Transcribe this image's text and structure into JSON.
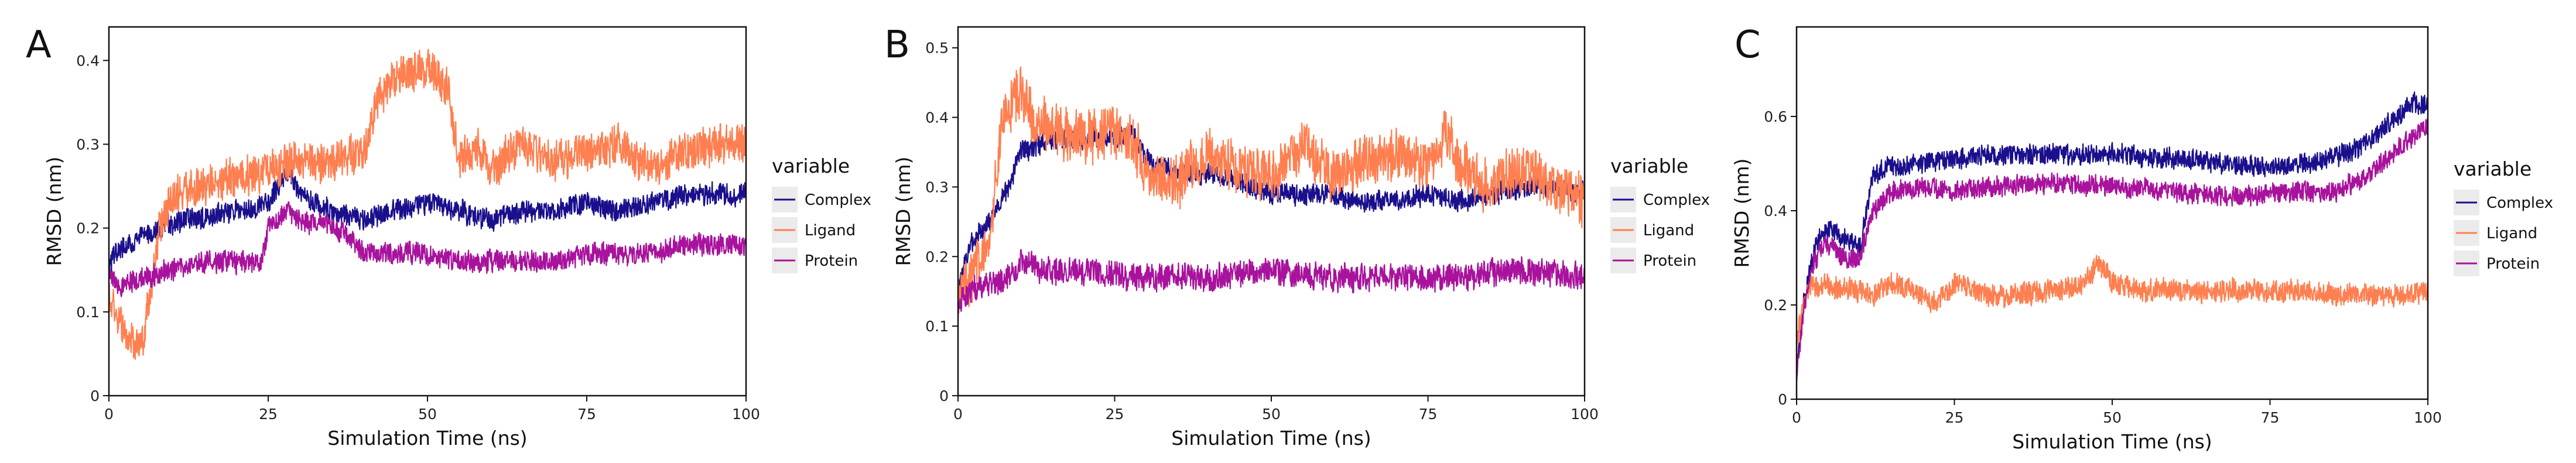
{
  "figure": {
    "description_free": true
  },
  "chart_data": [
    {
      "type": "line",
      "panel_label": "A",
      "xlabel": "Simulation Time (ns)",
      "ylabel": "RMSD (nm)",
      "xlim": [
        0,
        100
      ],
      "ylim": [
        0,
        0.44
      ],
      "xticks": [
        0,
        25,
        50,
        75,
        100
      ],
      "xtick_labels": [
        "0",
        "25",
        "50",
        "75",
        "100"
      ],
      "yticks": [
        0,
        0.1,
        0.2,
        0.3,
        0.4
      ],
      "ytick_labels": [
        "0",
        "0.1",
        "0.2",
        "0.3",
        "0.4"
      ],
      "legend": {
        "title": "variable",
        "position": "right",
        "entries": [
          "Complex",
          "Ligand",
          "Protein"
        ]
      },
      "series": [
        {
          "name": "Complex",
          "color": "#1a0f8c",
          "noise": 0.012,
          "x": [
            0,
            1,
            3,
            5,
            8,
            12,
            20,
            25,
            28,
            30,
            35,
            40,
            45,
            50,
            55,
            60,
            65,
            70,
            75,
            80,
            85,
            90,
            95,
            100
          ],
          "values": [
            0.15,
            0.17,
            0.18,
            0.19,
            0.2,
            0.21,
            0.22,
            0.23,
            0.27,
            0.24,
            0.22,
            0.21,
            0.22,
            0.23,
            0.22,
            0.21,
            0.22,
            0.22,
            0.23,
            0.22,
            0.23,
            0.24,
            0.24,
            0.24
          ]
        },
        {
          "name": "Ligand",
          "color": "#ff7f50",
          "noise": 0.022,
          "x": [
            0,
            2,
            4,
            5,
            8,
            10,
            15,
            20,
            25,
            30,
            35,
            40,
            42,
            45,
            48,
            50,
            53,
            55,
            58,
            60,
            65,
            70,
            75,
            80,
            85,
            90,
            95,
            100
          ],
          "values": [
            0.12,
            0.08,
            0.06,
            0.05,
            0.2,
            0.24,
            0.25,
            0.26,
            0.27,
            0.28,
            0.28,
            0.29,
            0.35,
            0.38,
            0.39,
            0.39,
            0.37,
            0.28,
            0.3,
            0.27,
            0.3,
            0.28,
            0.29,
            0.3,
            0.27,
            0.29,
            0.3,
            0.3
          ]
        },
        {
          "name": "Protein",
          "color": "#a8129c",
          "noise": 0.012,
          "x": [
            0,
            2,
            5,
            10,
            15,
            20,
            24,
            25,
            28,
            30,
            35,
            38,
            40,
            45,
            50,
            55,
            60,
            65,
            70,
            75,
            80,
            85,
            90,
            95,
            100
          ],
          "values": [
            0.14,
            0.13,
            0.14,
            0.15,
            0.16,
            0.16,
            0.16,
            0.2,
            0.22,
            0.21,
            0.2,
            0.19,
            0.17,
            0.17,
            0.17,
            0.16,
            0.16,
            0.16,
            0.16,
            0.17,
            0.17,
            0.17,
            0.18,
            0.18,
            0.18
          ]
        }
      ]
    },
    {
      "type": "line",
      "panel_label": "B",
      "xlabel": "Simulation Time (ns)",
      "ylabel": "RMSD (nm)",
      "xlim": [
        0,
        100
      ],
      "ylim": [
        0,
        0.53
      ],
      "xticks": [
        0,
        25,
        50,
        75,
        100
      ],
      "xtick_labels": [
        "0",
        "25",
        "50",
        "75",
        "100"
      ],
      "yticks": [
        0,
        0.1,
        0.2,
        0.3,
        0.4,
        0.5
      ],
      "ytick_labels": [
        "0",
        "0.1",
        "0.2",
        "0.3",
        "0.4",
        "0.5"
      ],
      "legend": {
        "title": "variable",
        "position": "right",
        "entries": [
          "Complex",
          "Ligand",
          "Protein"
        ]
      },
      "series": [
        {
          "name": "Complex",
          "color": "#1a0f8c",
          "noise": 0.014,
          "x": [
            0,
            2,
            5,
            8,
            10,
            15,
            20,
            25,
            28,
            30,
            35,
            40,
            45,
            50,
            55,
            60,
            65,
            70,
            75,
            80,
            85,
            90,
            95,
            100
          ],
          "values": [
            0.15,
            0.22,
            0.25,
            0.3,
            0.35,
            0.37,
            0.37,
            0.37,
            0.38,
            0.34,
            0.32,
            0.32,
            0.31,
            0.29,
            0.29,
            0.29,
            0.28,
            0.28,
            0.29,
            0.28,
            0.29,
            0.3,
            0.3,
            0.29
          ]
        },
        {
          "name": "Ligand",
          "color": "#ff7f50",
          "noise": 0.035,
          "x": [
            0,
            2,
            5,
            7,
            10,
            12,
            15,
            20,
            25,
            28,
            30,
            35,
            40,
            45,
            50,
            55,
            60,
            65,
            70,
            75,
            78,
            80,
            85,
            90,
            95,
            100
          ],
          "values": [
            0.15,
            0.17,
            0.22,
            0.4,
            0.44,
            0.4,
            0.38,
            0.37,
            0.38,
            0.37,
            0.32,
            0.31,
            0.35,
            0.33,
            0.31,
            0.36,
            0.32,
            0.34,
            0.35,
            0.33,
            0.38,
            0.33,
            0.3,
            0.33,
            0.3,
            0.28
          ]
        },
        {
          "name": "Protein",
          "color": "#a8129c",
          "noise": 0.018,
          "x": [
            0,
            2,
            5,
            8,
            10,
            15,
            20,
            30,
            40,
            50,
            60,
            70,
            80,
            90,
            100
          ],
          "values": [
            0.13,
            0.15,
            0.16,
            0.17,
            0.19,
            0.18,
            0.18,
            0.17,
            0.17,
            0.18,
            0.17,
            0.17,
            0.17,
            0.18,
            0.17
          ]
        }
      ]
    },
    {
      "type": "line",
      "panel_label": "C",
      "xlabel": "Simulation Time (ns)",
      "ylabel": "RMSD (nm)",
      "xlim": [
        0,
        100
      ],
      "ylim": [
        0,
        0.79
      ],
      "xticks": [
        0,
        25,
        50,
        75,
        100
      ],
      "xtick_labels": [
        "0",
        "25",
        "50",
        "75",
        "100"
      ],
      "yticks": [
        0,
        0.2,
        0.4,
        0.6
      ],
      "ytick_labels": [
        "0",
        "0.2",
        "0.4",
        "0.6"
      ],
      "legend": {
        "title": "variable",
        "position": "right",
        "entries": [
          "Complex",
          "Ligand",
          "Protein"
        ]
      },
      "series": [
        {
          "name": "Complex",
          "color": "#1a0f8c",
          "noise": 0.02,
          "x": [
            0,
            1,
            3,
            5,
            8,
            10,
            12,
            14,
            20,
            25,
            30,
            40,
            50,
            60,
            70,
            75,
            80,
            85,
            90,
            95,
            98,
            100
          ],
          "values": [
            0.05,
            0.2,
            0.33,
            0.36,
            0.34,
            0.32,
            0.47,
            0.49,
            0.5,
            0.51,
            0.52,
            0.52,
            0.52,
            0.51,
            0.5,
            0.49,
            0.5,
            0.51,
            0.54,
            0.6,
            0.63,
            0.62
          ]
        },
        {
          "name": "Ligand",
          "color": "#ff7f50",
          "noise": 0.022,
          "x": [
            0,
            1,
            2,
            5,
            10,
            12,
            15,
            20,
            22,
            25,
            30,
            35,
            40,
            45,
            48,
            50,
            55,
            60,
            70,
            80,
            90,
            95,
            100
          ],
          "values": [
            0.12,
            0.2,
            0.24,
            0.24,
            0.23,
            0.22,
            0.25,
            0.22,
            0.2,
            0.25,
            0.22,
            0.22,
            0.23,
            0.24,
            0.29,
            0.25,
            0.23,
            0.23,
            0.23,
            0.23,
            0.22,
            0.22,
            0.23
          ]
        },
        {
          "name": "Protein",
          "color": "#a8129c",
          "noise": 0.02,
          "x": [
            0,
            1,
            3,
            5,
            8,
            10,
            12,
            15,
            20,
            25,
            30,
            40,
            50,
            60,
            70,
            80,
            85,
            90,
            95,
            100
          ],
          "values": [
            0.05,
            0.18,
            0.3,
            0.33,
            0.3,
            0.3,
            0.4,
            0.44,
            0.45,
            0.44,
            0.45,
            0.46,
            0.45,
            0.44,
            0.43,
            0.44,
            0.44,
            0.47,
            0.53,
            0.58
          ]
        }
      ]
    }
  ]
}
